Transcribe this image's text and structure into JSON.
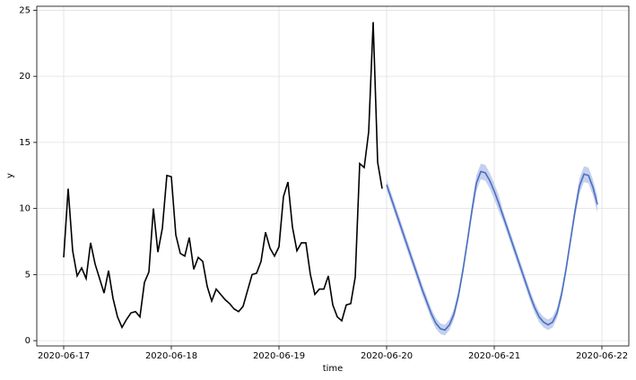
{
  "chart_data": {
    "type": "line",
    "x_label": "time",
    "y_label": "y",
    "xlim": [
      "2020-06-16 18:00",
      "2020-06-22 06:00"
    ],
    "xticks": [
      "2020-06-17",
      "2020-06-18",
      "2020-06-19",
      "2020-06-20",
      "2020-06-21",
      "2020-06-22"
    ],
    "ylim": [
      -0.4,
      25.3
    ],
    "yticks": [
      0,
      5,
      10,
      15,
      20,
      25
    ],
    "grid": true,
    "series": [
      {
        "color": "#000000",
        "x": [
          "2020-06-17 00:00",
          "2020-06-17 01:00",
          "2020-06-17 02:00",
          "2020-06-17 03:00",
          "2020-06-17 04:00",
          "2020-06-17 05:00",
          "2020-06-17 06:00",
          "2020-06-17 07:00",
          "2020-06-17 08:00",
          "2020-06-17 09:00",
          "2020-06-17 10:00",
          "2020-06-17 11:00",
          "2020-06-17 12:00",
          "2020-06-17 13:00",
          "2020-06-17 14:00",
          "2020-06-17 15:00",
          "2020-06-17 16:00",
          "2020-06-17 17:00",
          "2020-06-17 18:00",
          "2020-06-17 19:00",
          "2020-06-17 20:00",
          "2020-06-17 21:00",
          "2020-06-17 22:00",
          "2020-06-17 23:00",
          "2020-06-18 00:00",
          "2020-06-18 01:00",
          "2020-06-18 02:00",
          "2020-06-18 03:00",
          "2020-06-18 04:00",
          "2020-06-18 05:00",
          "2020-06-18 06:00",
          "2020-06-18 07:00",
          "2020-06-18 08:00",
          "2020-06-18 09:00",
          "2020-06-18 10:00",
          "2020-06-18 11:00",
          "2020-06-18 12:00",
          "2020-06-18 13:00",
          "2020-06-18 14:00",
          "2020-06-18 15:00",
          "2020-06-18 16:00",
          "2020-06-18 17:00",
          "2020-06-18 18:00",
          "2020-06-18 19:00",
          "2020-06-18 20:00",
          "2020-06-18 21:00",
          "2020-06-18 22:00",
          "2020-06-18 23:00",
          "2020-06-19 00:00",
          "2020-06-19 01:00",
          "2020-06-19 02:00",
          "2020-06-19 03:00",
          "2020-06-19 04:00",
          "2020-06-19 05:00",
          "2020-06-19 06:00",
          "2020-06-19 07:00",
          "2020-06-19 08:00",
          "2020-06-19 09:00",
          "2020-06-19 10:00",
          "2020-06-19 11:00",
          "2020-06-19 12:00",
          "2020-06-19 13:00",
          "2020-06-19 14:00",
          "2020-06-19 15:00",
          "2020-06-19 16:00",
          "2020-06-19 17:00",
          "2020-06-19 18:00",
          "2020-06-19 19:00",
          "2020-06-19 20:00",
          "2020-06-19 21:00",
          "2020-06-19 22:00",
          "2020-06-19 23:00"
        ],
        "values": [
          6.3,
          11.5,
          6.8,
          4.9,
          5.5,
          4.7,
          7.4,
          5.8,
          4.7,
          3.6,
          5.3,
          3.2,
          1.8,
          1.0,
          1.6,
          2.1,
          2.2,
          1.8,
          4.4,
          5.2,
          10.0,
          6.7,
          8.5,
          12.5,
          12.4,
          8.0,
          6.6,
          6.4,
          7.8,
          5.4,
          6.3,
          6.0,
          4.1,
          3.0,
          3.9,
          3.5,
          3.1,
          2.8,
          2.4,
          2.2,
          2.6,
          3.8,
          5.0,
          5.1,
          6.0,
          8.2,
          7.0,
          6.4,
          7.1,
          10.9,
          12.0,
          8.6,
          6.8,
          7.4,
          7.4,
          5.0,
          3.5,
          3.9,
          3.9,
          4.9,
          2.7,
          1.8,
          1.5,
          2.7,
          2.8,
          4.8,
          13.4,
          13.1,
          15.8,
          24.1,
          13.5,
          11.5
        ]
      },
      {
        "color": "#4a6fc0",
        "band_color": "#c5d0ee",
        "x": [
          "2020-06-20 00:00",
          "2020-06-20 01:00",
          "2020-06-20 02:00",
          "2020-06-20 03:00",
          "2020-06-20 04:00",
          "2020-06-20 05:00",
          "2020-06-20 06:00",
          "2020-06-20 07:00",
          "2020-06-20 08:00",
          "2020-06-20 09:00",
          "2020-06-20 10:00",
          "2020-06-20 11:00",
          "2020-06-20 12:00",
          "2020-06-20 13:00",
          "2020-06-20 14:00",
          "2020-06-20 15:00",
          "2020-06-20 16:00",
          "2020-06-20 17:00",
          "2020-06-20 18:00",
          "2020-06-20 19:00",
          "2020-06-20 20:00",
          "2020-06-20 21:00",
          "2020-06-20 22:00",
          "2020-06-20 23:00",
          "2020-06-21 00:00",
          "2020-06-21 01:00",
          "2020-06-21 02:00",
          "2020-06-21 03:00",
          "2020-06-21 04:00",
          "2020-06-21 05:00",
          "2020-06-21 06:00",
          "2020-06-21 07:00",
          "2020-06-21 08:00",
          "2020-06-21 09:00",
          "2020-06-21 10:00",
          "2020-06-21 11:00",
          "2020-06-21 12:00",
          "2020-06-21 13:00",
          "2020-06-21 14:00",
          "2020-06-21 15:00",
          "2020-06-21 16:00",
          "2020-06-21 17:00",
          "2020-06-21 18:00",
          "2020-06-21 19:00",
          "2020-06-21 20:00",
          "2020-06-21 21:00",
          "2020-06-21 22:00",
          "2020-06-21 23:00"
        ],
        "values": [
          11.8,
          10.8,
          9.8,
          8.8,
          7.8,
          6.8,
          5.8,
          4.8,
          3.8,
          2.9,
          2.0,
          1.3,
          0.9,
          0.8,
          1.2,
          2.0,
          3.4,
          5.3,
          7.5,
          9.8,
          11.9,
          12.8,
          12.7,
          12.1,
          11.3,
          10.4,
          9.4,
          8.4,
          7.4,
          6.4,
          5.4,
          4.4,
          3.4,
          2.5,
          1.8,
          1.4,
          1.2,
          1.4,
          2.1,
          3.5,
          5.4,
          7.6,
          9.8,
          11.7,
          12.6,
          12.5,
          11.6,
          10.3
        ],
        "lower": [
          11.4,
          10.4,
          9.4,
          8.4,
          7.4,
          6.4,
          5.4,
          4.4,
          3.4,
          2.5,
          1.6,
          0.9,
          0.5,
          0.4,
          0.8,
          1.6,
          3.0,
          4.9,
          7.1,
          9.3,
          11.3,
          12.2,
          12.1,
          11.5,
          10.7,
          9.8,
          9.0,
          8.0,
          7.0,
          6.0,
          5.0,
          4.0,
          3.0,
          2.1,
          1.4,
          1.0,
          0.8,
          1.0,
          1.7,
          3.1,
          5.0,
          7.2,
          9.3,
          11.1,
          12.0,
          11.9,
          11.0,
          9.7
        ],
        "upper": [
          12.2,
          11.2,
          10.2,
          9.2,
          8.2,
          7.2,
          6.2,
          5.2,
          4.2,
          3.3,
          2.4,
          1.7,
          1.3,
          1.2,
          1.6,
          2.4,
          3.8,
          5.7,
          7.9,
          10.3,
          12.5,
          13.4,
          13.3,
          12.7,
          11.9,
          11.0,
          9.8,
          8.8,
          7.8,
          6.8,
          5.8,
          4.8,
          3.8,
          2.9,
          2.2,
          1.8,
          1.6,
          1.8,
          2.5,
          3.9,
          5.8,
          8.0,
          10.3,
          12.3,
          13.2,
          13.1,
          12.2,
          10.9
        ]
      }
    ]
  }
}
